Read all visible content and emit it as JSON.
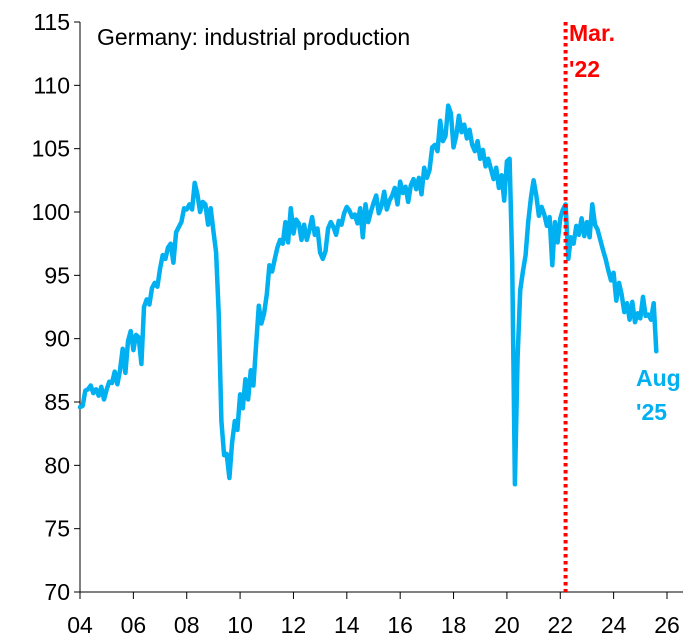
{
  "chart_data": {
    "type": "line",
    "title": "Germany: industrial production",
    "xlabel": "",
    "ylabel": "",
    "xlim": [
      2004,
      2026.6
    ],
    "ylim": [
      70,
      115
    ],
    "x_ticks": [
      {
        "value": 2004,
        "label": "04"
      },
      {
        "value": 2006,
        "label": "06"
      },
      {
        "value": 2008,
        "label": "08"
      },
      {
        "value": 2010,
        "label": "10"
      },
      {
        "value": 2012,
        "label": "12"
      },
      {
        "value": 2014,
        "label": "14"
      },
      {
        "value": 2016,
        "label": "16"
      },
      {
        "value": 2018,
        "label": "18"
      },
      {
        "value": 2020,
        "label": "20"
      },
      {
        "value": 2022,
        "label": "22"
      },
      {
        "value": 2024,
        "label": "24"
      },
      {
        "value": 2026,
        "label": "26"
      }
    ],
    "y_ticks": [
      {
        "value": 115,
        "label": "115"
      },
      {
        "value": 110,
        "label": "110"
      },
      {
        "value": 105,
        "label": "105"
      },
      {
        "value": 100,
        "label": "100"
      },
      {
        "value": 95,
        "label": "95"
      },
      {
        "value": 90,
        "label": "90"
      },
      {
        "value": 85,
        "label": "85"
      },
      {
        "value": 80,
        "label": "80"
      },
      {
        "value": 75,
        "label": "75"
      },
      {
        "value": 70,
        "label": "70"
      }
    ],
    "grid": false,
    "series": [
      {
        "name": "Germany: industrial production",
        "color": "#00B0F0",
        "points": [
          [
            2004.0,
            84.6
          ],
          [
            2004.1,
            84.7
          ],
          [
            2004.2,
            85.9
          ],
          [
            2004.3,
            86.0
          ],
          [
            2004.4,
            86.3
          ],
          [
            2004.5,
            85.7
          ],
          [
            2004.6,
            86.0
          ],
          [
            2004.7,
            85.5
          ],
          [
            2004.8,
            86.2
          ],
          [
            2004.9,
            85.2
          ],
          [
            2005.0,
            86.0
          ],
          [
            2005.1,
            86.6
          ],
          [
            2005.2,
            86.5
          ],
          [
            2005.3,
            87.4
          ],
          [
            2005.4,
            86.4
          ],
          [
            2005.5,
            87.5
          ],
          [
            2005.6,
            89.2
          ],
          [
            2005.7,
            87.3
          ],
          [
            2005.8,
            89.8
          ],
          [
            2005.9,
            90.6
          ],
          [
            2006.0,
            89.1
          ],
          [
            2006.1,
            90.3
          ],
          [
            2006.2,
            90.1
          ],
          [
            2006.3,
            88.0
          ],
          [
            2006.4,
            92.5
          ],
          [
            2006.5,
            93.1
          ],
          [
            2006.6,
            92.7
          ],
          [
            2006.7,
            94.0
          ],
          [
            2006.8,
            94.4
          ],
          [
            2006.9,
            94.1
          ],
          [
            2007.0,
            95.5
          ],
          [
            2007.1,
            96.6
          ],
          [
            2007.2,
            96.3
          ],
          [
            2007.3,
            97.2
          ],
          [
            2007.4,
            97.5
          ],
          [
            2007.5,
            96.0
          ],
          [
            2007.6,
            98.4
          ],
          [
            2007.7,
            98.8
          ],
          [
            2007.8,
            99.2
          ],
          [
            2007.9,
            100.3
          ],
          [
            2008.0,
            100.2
          ],
          [
            2008.1,
            100.6
          ],
          [
            2008.2,
            100.2
          ],
          [
            2008.3,
            102.3
          ],
          [
            2008.4,
            101.4
          ],
          [
            2008.5,
            100.0
          ],
          [
            2008.6,
            100.8
          ],
          [
            2008.7,
            100.6
          ],
          [
            2008.8,
            99.0
          ],
          [
            2008.9,
            100.3
          ],
          [
            2009.0,
            98.5
          ],
          [
            2009.1,
            96.8
          ],
          [
            2009.2,
            92.0
          ],
          [
            2009.3,
            83.5
          ],
          [
            2009.4,
            80.8
          ],
          [
            2009.5,
            80.9
          ],
          [
            2009.6,
            79.0
          ],
          [
            2009.7,
            81.8
          ],
          [
            2009.8,
            83.5
          ],
          [
            2009.9,
            82.8
          ],
          [
            2010.0,
            85.6
          ],
          [
            2010.1,
            84.5
          ],
          [
            2010.2,
            86.8
          ],
          [
            2010.3,
            85.2
          ],
          [
            2010.4,
            87.5
          ],
          [
            2010.5,
            86.3
          ],
          [
            2010.6,
            89.5
          ],
          [
            2010.7,
            92.6
          ],
          [
            2010.8,
            91.2
          ],
          [
            2010.9,
            92.0
          ],
          [
            2011.0,
            93.5
          ],
          [
            2011.1,
            95.8
          ],
          [
            2011.2,
            95.3
          ],
          [
            2011.3,
            96.3
          ],
          [
            2011.4,
            97.2
          ],
          [
            2011.5,
            97.8
          ],
          [
            2011.6,
            97.5
          ],
          [
            2011.7,
            99.2
          ],
          [
            2011.8,
            97.6
          ],
          [
            2011.9,
            100.3
          ],
          [
            2012.0,
            98.3
          ],
          [
            2012.1,
            99.4
          ],
          [
            2012.2,
            99.1
          ],
          [
            2012.3,
            97.8
          ],
          [
            2012.4,
            99.0
          ],
          [
            2012.5,
            97.8
          ],
          [
            2012.6,
            98.6
          ],
          [
            2012.7,
            99.6
          ],
          [
            2012.8,
            98.2
          ],
          [
            2012.9,
            98.7
          ],
          [
            2013.0,
            96.8
          ],
          [
            2013.1,
            96.3
          ],
          [
            2013.2,
            96.9
          ],
          [
            2013.3,
            98.7
          ],
          [
            2013.4,
            99.2
          ],
          [
            2013.5,
            98.8
          ],
          [
            2013.6,
            98.2
          ],
          [
            2013.7,
            99.3
          ],
          [
            2013.8,
            99.0
          ],
          [
            2013.9,
            99.9
          ],
          [
            2014.0,
            100.4
          ],
          [
            2014.1,
            100.1
          ],
          [
            2014.2,
            99.6
          ],
          [
            2014.3,
            99.8
          ],
          [
            2014.4,
            99.1
          ],
          [
            2014.5,
            100.3
          ],
          [
            2014.6,
            98.0
          ],
          [
            2014.7,
            100.6
          ],
          [
            2014.8,
            99.2
          ],
          [
            2014.9,
            100.0
          ],
          [
            2015.0,
            100.7
          ],
          [
            2015.1,
            101.3
          ],
          [
            2015.2,
            99.9
          ],
          [
            2015.3,
            100.5
          ],
          [
            2015.4,
            101.6
          ],
          [
            2015.5,
            100.2
          ],
          [
            2015.6,
            100.9
          ],
          [
            2015.7,
            101.3
          ],
          [
            2015.8,
            101.9
          ],
          [
            2015.9,
            100.6
          ],
          [
            2016.0,
            102.4
          ],
          [
            2016.1,
            101.5
          ],
          [
            2016.2,
            102.0
          ],
          [
            2016.3,
            100.8
          ],
          [
            2016.4,
            102.1
          ],
          [
            2016.5,
            102.6
          ],
          [
            2016.6,
            101.8
          ],
          [
            2016.7,
            102.7
          ],
          [
            2016.8,
            101.4
          ],
          [
            2016.9,
            103.5
          ],
          [
            2017.0,
            102.7
          ],
          [
            2017.1,
            103.3
          ],
          [
            2017.2,
            105.1
          ],
          [
            2017.3,
            105.3
          ],
          [
            2017.4,
            104.8
          ],
          [
            2017.5,
            107.2
          ],
          [
            2017.6,
            105.6
          ],
          [
            2017.7,
            106.0
          ],
          [
            2017.8,
            108.4
          ],
          [
            2017.9,
            107.8
          ],
          [
            2018.0,
            105.1
          ],
          [
            2018.1,
            106.0
          ],
          [
            2018.2,
            107.6
          ],
          [
            2018.3,
            106.3
          ],
          [
            2018.4,
            106.9
          ],
          [
            2018.5,
            105.8
          ],
          [
            2018.6,
            106.5
          ],
          [
            2018.7,
            105.3
          ],
          [
            2018.8,
            104.8
          ],
          [
            2018.9,
            105.6
          ],
          [
            2019.0,
            104.2
          ],
          [
            2019.1,
            104.9
          ],
          [
            2019.2,
            103.6
          ],
          [
            2019.3,
            104.2
          ],
          [
            2019.4,
            103.4
          ],
          [
            2019.5,
            102.6
          ],
          [
            2019.6,
            103.5
          ],
          [
            2019.7,
            101.9
          ],
          [
            2019.8,
            102.9
          ],
          [
            2019.9,
            100.9
          ],
          [
            2020.0,
            104.0
          ],
          [
            2020.1,
            104.2
          ],
          [
            2020.2,
            96.0
          ],
          [
            2020.3,
            78.5
          ],
          [
            2020.4,
            88.5
          ],
          [
            2020.5,
            93.8
          ],
          [
            2020.6,
            95.3
          ],
          [
            2020.7,
            96.6
          ],
          [
            2020.8,
            99.2
          ],
          [
            2020.9,
            101.1
          ],
          [
            2021.0,
            102.5
          ],
          [
            2021.1,
            101.3
          ],
          [
            2021.2,
            99.7
          ],
          [
            2021.3,
            100.4
          ],
          [
            2021.4,
            99.8
          ],
          [
            2021.5,
            98.9
          ],
          [
            2021.6,
            99.6
          ],
          [
            2021.7,
            95.8
          ],
          [
            2021.8,
            99.2
          ],
          [
            2021.9,
            97.6
          ],
          [
            2022.0,
            99.5
          ],
          [
            2022.1,
            100.2
          ],
          [
            2022.2,
            100.6
          ],
          [
            2022.3,
            96.3
          ],
          [
            2022.4,
            98.0
          ],
          [
            2022.5,
            97.5
          ],
          [
            2022.6,
            98.9
          ],
          [
            2022.7,
            98.2
          ],
          [
            2022.8,
            99.5
          ],
          [
            2022.9,
            98.1
          ],
          [
            2023.0,
            99.2
          ],
          [
            2023.1,
            98.0
          ],
          [
            2023.2,
            100.6
          ],
          [
            2023.3,
            99.0
          ],
          [
            2023.4,
            98.6
          ],
          [
            2023.5,
            97.8
          ],
          [
            2023.6,
            97.0
          ],
          [
            2023.7,
            96.3
          ],
          [
            2023.8,
            95.4
          ],
          [
            2023.9,
            94.6
          ],
          [
            2024.0,
            95.2
          ],
          [
            2024.1,
            93.0
          ],
          [
            2024.2,
            94.4
          ],
          [
            2024.3,
            93.5
          ],
          [
            2024.4,
            92.1
          ],
          [
            2024.5,
            92.8
          ],
          [
            2024.6,
            91.5
          ],
          [
            2024.7,
            92.9
          ],
          [
            2024.8,
            91.3
          ],
          [
            2024.9,
            92.0
          ],
          [
            2025.0,
            91.6
          ],
          [
            2025.1,
            93.3
          ],
          [
            2025.2,
            91.8
          ],
          [
            2025.3,
            91.9
          ],
          [
            2025.4,
            91.5
          ],
          [
            2025.5,
            92.8
          ],
          [
            2025.6,
            89.0
          ]
        ]
      }
    ],
    "vline": {
      "x": 2022.2,
      "color": "#FF0000",
      "style": "dotted"
    },
    "annotations": [
      {
        "id": "mar22",
        "lines": [
          "Mar.",
          "'22"
        ],
        "color": "#FF0000"
      },
      {
        "id": "aug25",
        "lines": [
          "Aug",
          "'25"
        ],
        "color": "#00B0F0"
      }
    ]
  }
}
